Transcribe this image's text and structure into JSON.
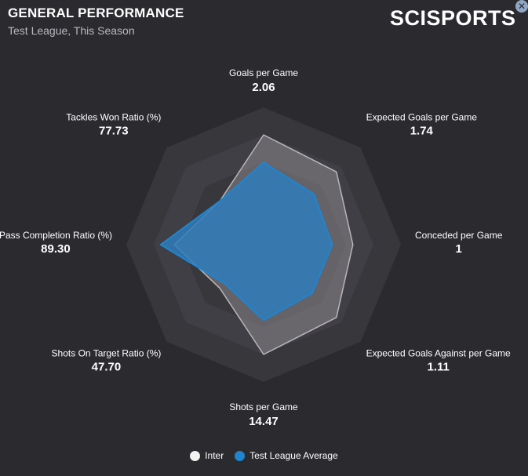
{
  "header": {
    "title": "GENERAL PERFORMANCE",
    "subtitle": "Test League, This Season",
    "brand": "SCISPORTS",
    "close_icon": "close-icon"
  },
  "colors": {
    "background": "#2b2a2f",
    "ring_outer": "#38373c",
    "ring_inner": "#403f45",
    "series_team": "#8a878d",
    "series_league": "#2f7dbb",
    "series_league_stroke": "#1f85d0"
  },
  "chart_data": {
    "type": "radar",
    "axes": [
      {
        "label": "Goals per Game",
        "value": "2.06"
      },
      {
        "label": "Expected Goals per Game",
        "value": "1.74"
      },
      {
        "label": "Conceded per Game",
        "value": "1"
      },
      {
        "label": "Expected Goals Against per Game",
        "value": "1.11"
      },
      {
        "label": "Shots per Game",
        "value": "14.47"
      },
      {
        "label": "Shots On Target Ratio (%)",
        "value": "47.70"
      },
      {
        "label": "Pass Completion Ratio (%)",
        "value": "89.30"
      },
      {
        "label": "Tackles Won Ratio (%)",
        "value": "77.73"
      }
    ],
    "series": [
      {
        "name": "Inter",
        "values": [
          0.8,
          0.75,
          0.65,
          0.75,
          0.8,
          0.45,
          0.65,
          0.45
        ]
      },
      {
        "name": "Test League Average",
        "values": [
          0.6,
          0.52,
          0.5,
          0.5,
          0.55,
          0.4,
          0.75,
          0.45
        ]
      }
    ],
    "scale": [
      0,
      1
    ],
    "rings": 5,
    "legend_position": "bottom-center"
  }
}
